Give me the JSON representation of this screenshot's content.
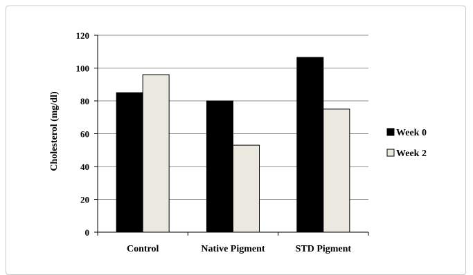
{
  "chart_data": {
    "type": "bar",
    "title": "",
    "xlabel": "",
    "ylabel": "Cholesterol (mg/dl)",
    "ylim": [
      0,
      120
    ],
    "yticks": [
      0,
      20,
      40,
      60,
      80,
      100,
      120
    ],
    "grid": true,
    "legend_position": "right",
    "categories": [
      "Control",
      "Native Pigment",
      "STD Pigment"
    ],
    "series": [
      {
        "name": "Week 0",
        "values": [
          85,
          80,
          106.5
        ],
        "color": "#000000"
      },
      {
        "name": "Week 2",
        "values": [
          96,
          53,
          75
        ],
        "color": "#ebe8e0"
      }
    ]
  }
}
